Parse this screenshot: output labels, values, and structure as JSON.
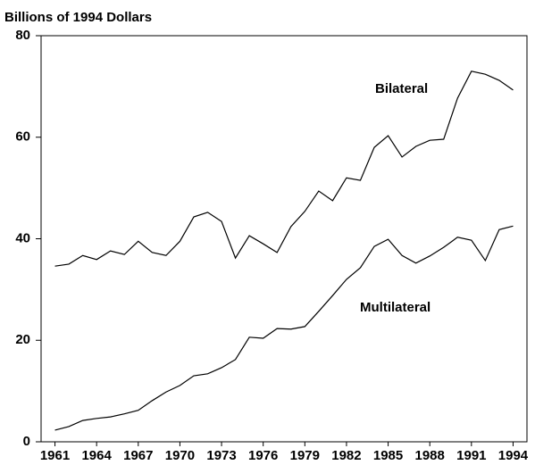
{
  "chart_data": {
    "type": "line",
    "title": "Billions of 1994 Dollars",
    "x": [
      1961,
      1962,
      1963,
      1964,
      1965,
      1966,
      1967,
      1968,
      1969,
      1970,
      1971,
      1972,
      1973,
      1974,
      1975,
      1976,
      1977,
      1978,
      1979,
      1980,
      1981,
      1982,
      1983,
      1984,
      1985,
      1986,
      1987,
      1988,
      1989,
      1990,
      1991,
      1992,
      1993,
      1994
    ],
    "series": [
      {
        "name": "Bilateral",
        "color": "#000000",
        "values": [
          34.6,
          35.0,
          36.7,
          35.9,
          37.6,
          36.9,
          39.5,
          37.3,
          36.7,
          39.5,
          44.3,
          45.2,
          43.4,
          36.2,
          40.6,
          39.0,
          37.3,
          42.4,
          45.4,
          49.4,
          47.5,
          52.0,
          51.5,
          58.0,
          60.3,
          56.1,
          58.2,
          59.4,
          59.6,
          67.7,
          73.0,
          72.4,
          71.2,
          69.3
        ]
      },
      {
        "name": "Multilateral",
        "color": "#000000",
        "values": [
          2.3,
          3.0,
          4.2,
          4.6,
          4.9,
          5.5,
          6.2,
          8.1,
          9.8,
          11.1,
          13.0,
          13.4,
          14.6,
          16.2,
          20.6,
          20.4,
          22.3,
          22.2,
          22.7,
          25.7,
          28.8,
          32.0,
          34.3,
          38.5,
          39.9,
          36.7,
          35.2,
          36.6,
          38.3,
          40.3,
          39.7,
          35.7,
          41.8,
          42.5
        ]
      }
    ],
    "xlim": [
      1960,
      1995
    ],
    "xticks": [
      1961,
      1964,
      1967,
      1970,
      1973,
      1976,
      1979,
      1982,
      1985,
      1988,
      1991,
      1994
    ],
    "ylim": [
      0,
      80
    ],
    "yticks": [
      0,
      20,
      40,
      60,
      80
    ],
    "grid": false
  }
}
